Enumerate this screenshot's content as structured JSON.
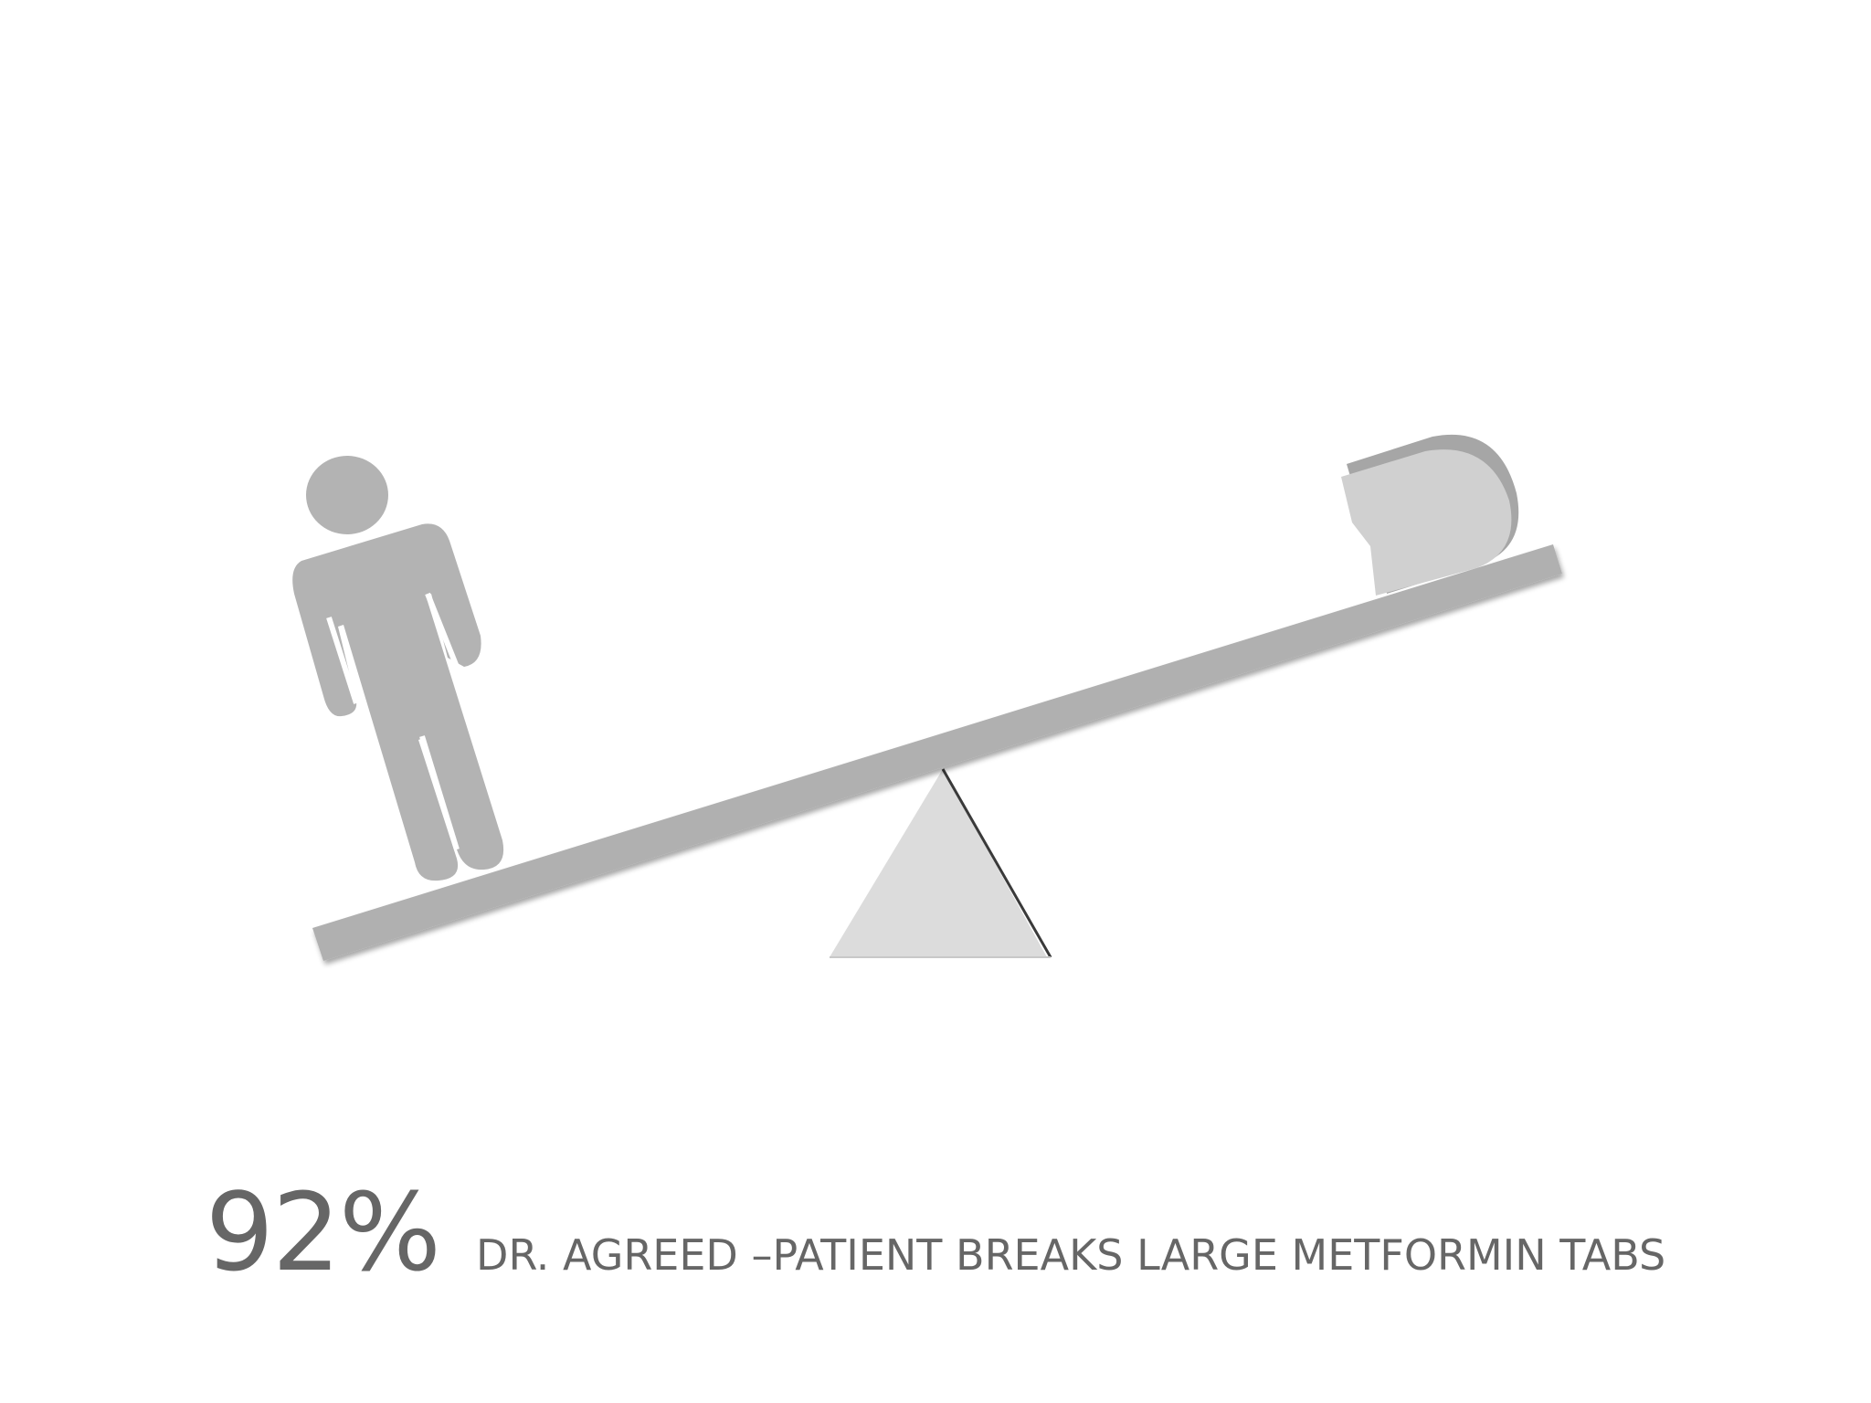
{
  "caption": {
    "percent": "92%",
    "text": "DR. AGREED –PATIENT BREAKS LARGE METFORMIN TABS"
  },
  "illustration": {
    "icons": [
      "person-icon",
      "seesaw-plank",
      "fulcrum-triangle",
      "broken-pill-icon"
    ],
    "colors": {
      "figure": "#b3b3b3",
      "plank": "#b0b0b0",
      "fulcrum": "#dcdcdc",
      "pill": "#d0d0d0",
      "pill_shadow": "#a6a6a6",
      "text": "#666666"
    }
  }
}
